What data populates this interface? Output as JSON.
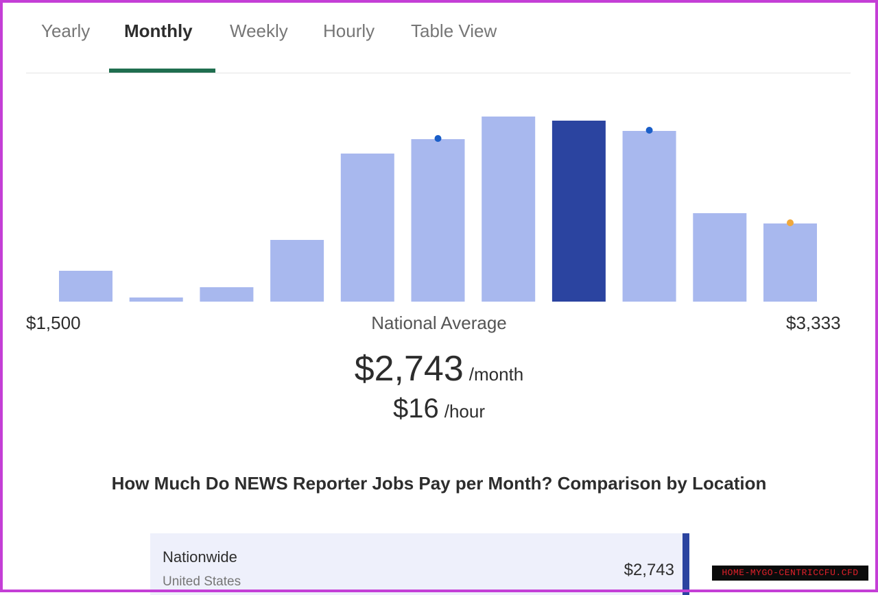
{
  "tabs": [
    {
      "label": "Yearly",
      "active": false
    },
    {
      "label": "Monthly",
      "active": true
    },
    {
      "label": "Weekly",
      "active": false
    },
    {
      "label": "Hourly",
      "active": false
    },
    {
      "label": "Table View",
      "active": false
    }
  ],
  "chart_data": {
    "type": "bar",
    "x_min_label": "$1,500",
    "x_max_label": "$3,333",
    "x_center_label": "National Average",
    "values": [
      15,
      2,
      7,
      30,
      72,
      79,
      90,
      88,
      83,
      43,
      38
    ],
    "highlight_index": 7,
    "markers": [
      {
        "index": 5,
        "color": "#1a5ec8"
      },
      {
        "index": 8,
        "color": "#1a5ec8"
      },
      {
        "index": 10,
        "color": "#f0a83c"
      }
    ],
    "colors": {
      "bar": "#a8b8ee",
      "highlight": "#2b44a0"
    }
  },
  "average": {
    "monthly_value": "$2,743",
    "monthly_unit": "/month",
    "hourly_value": "$16",
    "hourly_unit": "/hour"
  },
  "section": {
    "title": "How Much Do NEWS Reporter Jobs Pay per Month? Comparison by Location"
  },
  "locations": [
    {
      "name": "Nationwide",
      "sub": "United States",
      "value": "$2,743"
    }
  ],
  "watermark": "HOME-MYGO-CENTRICCFU.CFD"
}
